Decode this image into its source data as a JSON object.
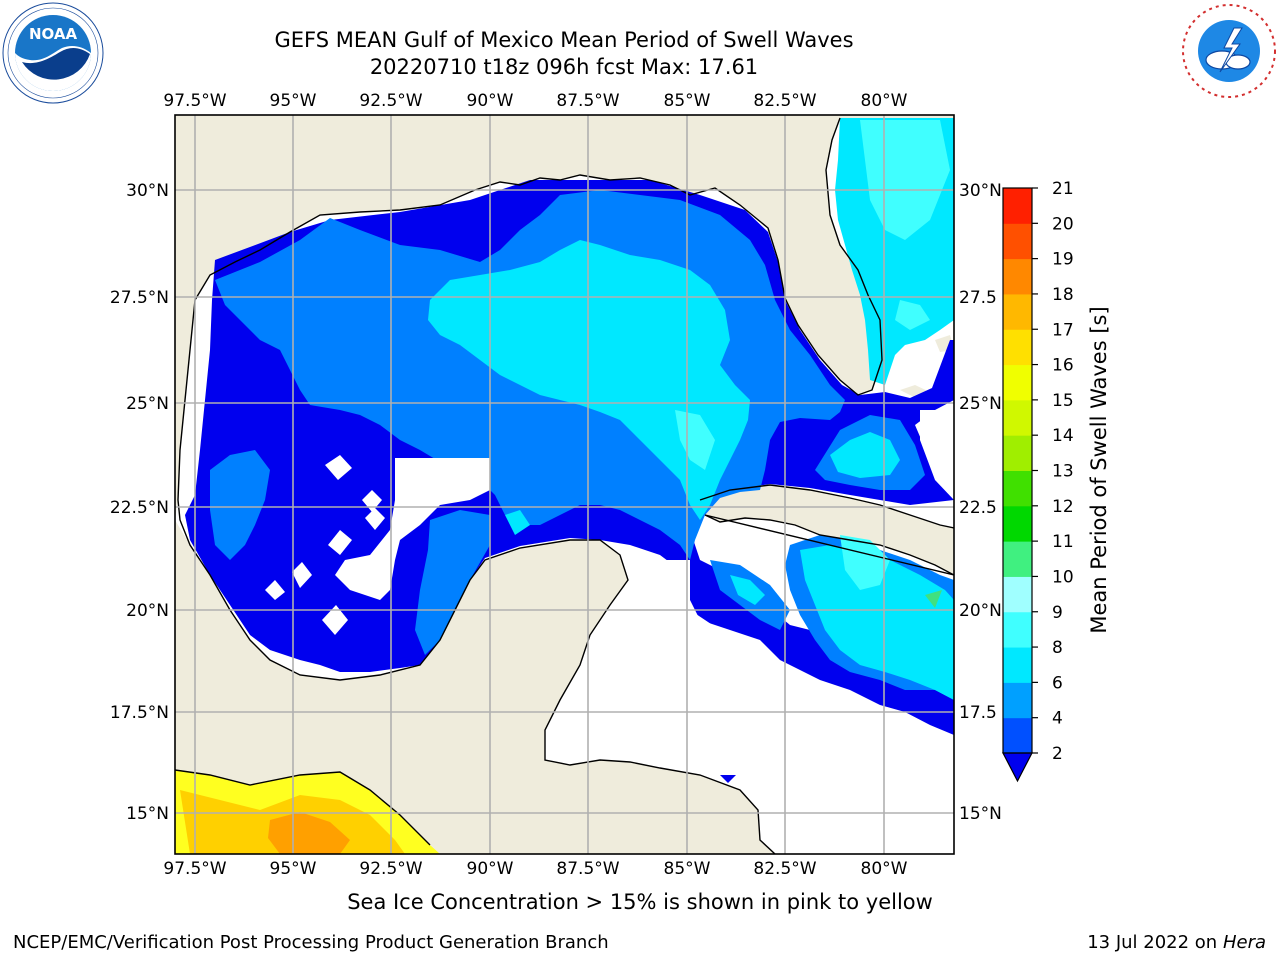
{
  "title_line1": "GEFS MEAN Gulf of Mexico Mean Period of Swell Waves",
  "title_line2": "20220710 t18z 096h fcst   Max: 17.61",
  "longitude_labels": [
    "97.5°W",
    "95°W",
    "92.5°W",
    "90°W",
    "87.5°W",
    "85°W",
    "82.5°W",
    "80°W"
  ],
  "latitude_labels": [
    "30°N",
    "27.5°N",
    "25°N",
    "22.5°N",
    "20°N",
    "17.5°N",
    "15°N"
  ],
  "right_latitude_labels": [
    "30°N",
    "27.5",
    "25°N",
    "22.5",
    "20°N",
    "17.5",
    "15°N"
  ],
  "colorbar": {
    "label": "Mean Period of Swell Waves [s]",
    "ticks": [
      "2",
      "4",
      "6",
      "8",
      "9",
      "10",
      "11",
      "12",
      "13",
      "14",
      "15",
      "16",
      "17",
      "18",
      "19",
      "20",
      "21"
    ],
    "colors": [
      "#0050ff",
      "#00a0ff",
      "#00e8ff",
      "#40ffff",
      "#a0ffff",
      "#40f080",
      "#00d800",
      "#40e000",
      "#a0ee00",
      "#d0f800",
      "#f0ff00",
      "#ffe000",
      "#ffb800",
      "#ff8800",
      "#ff5000",
      "#ff2000"
    ],
    "under_color": "#0000ee"
  },
  "colors": {
    "land": "#efecdc",
    "grid": "#b0b0b0",
    "swell_2": "#0000ee",
    "swell_4": "#0080ff",
    "swell_6": "#00e8ff",
    "swell_8": "#40ffff",
    "ice_1": "#ffff20",
    "ice_2": "#ffd000",
    "ice_3": "#ffa000"
  },
  "logos": {
    "left": "NOAA",
    "right": "NATIONAL WEATHER SERVICE"
  },
  "note": "Sea Ice Concentration > 15% is shown in pink to yellow",
  "footer_left": "NCEP/EMC/Verification Post Processing Product Generation Branch",
  "footer_right_date": "13 Jul 2022 on ",
  "footer_right_host": "Hera"
}
